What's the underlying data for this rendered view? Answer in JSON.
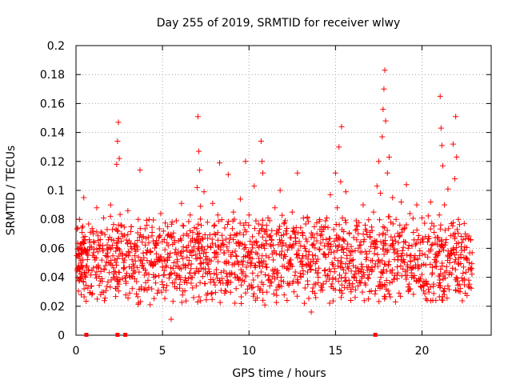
{
  "chart_data": {
    "type": "scatter",
    "title": "Day 255 of 2019, SRMTID for receiver wlwy",
    "xlabel": "GPS time / hours",
    "ylabel": "SRMTID / TECUs",
    "xlim": [
      0,
      24
    ],
    "ylim": [
      0,
      0.2
    ],
    "xticks": [
      0,
      5,
      10,
      15,
      20
    ],
    "xtick_labels": [
      "0",
      "5",
      "10",
      "15",
      "20"
    ],
    "yticks": [
      0,
      0.02,
      0.04,
      0.06,
      0.08,
      0.1,
      0.12,
      0.14,
      0.16,
      0.18,
      0.2
    ],
    "ytick_labels": [
      "0",
      "0.02",
      "0.04",
      "0.06",
      "0.08",
      "0.1",
      "0.12",
      "0.14",
      "0.16",
      "0.18",
      "0.2"
    ],
    "grid": true,
    "marker": "plus",
    "series_color": "#ff0000",
    "series": [
      {
        "name": "SRMTID",
        "points": [
          [
            0.05,
            0.055
          ],
          [
            0.1,
            0.074
          ],
          [
            0.15,
            0.048
          ],
          [
            0.2,
            0.08
          ],
          [
            0.25,
            0.063
          ],
          [
            0.3,
            0.028
          ],
          [
            0.35,
            0.071
          ],
          [
            0.4,
            0.052
          ],
          [
            0.45,
            0.095
          ],
          [
            0.5,
            0.066
          ],
          [
            0.55,
            0.04
          ],
          [
            0.6,
            0.058
          ],
          [
            0.7,
            0.045
          ],
          [
            0.8,
            0.061
          ],
          [
            0.9,
            0.034
          ],
          [
            1.0,
            0.07
          ],
          [
            1.1,
            0.052
          ],
          [
            1.2,
            0.088
          ],
          [
            1.3,
            0.047
          ],
          [
            1.4,
            0.066
          ],
          [
            1.5,
            0.039
          ],
          [
            1.6,
            0.081
          ],
          [
            1.7,
            0.055
          ],
          [
            1.8,
            0.073
          ],
          [
            1.9,
            0.05
          ],
          [
            2.0,
            0.09
          ],
          [
            2.1,
            0.062
          ],
          [
            2.2,
            0.044
          ],
          [
            2.3,
            0.058
          ],
          [
            2.35,
            0.118
          ],
          [
            2.4,
            0.134
          ],
          [
            2.45,
            0.147
          ],
          [
            2.5,
            0.122
          ],
          [
            2.6,
            0.076
          ],
          [
            2.7,
            0.053
          ],
          [
            2.8,
            0.069
          ],
          [
            2.9,
            0.041
          ],
          [
            3.0,
            0.086
          ],
          [
            3.1,
            0.057
          ],
          [
            3.2,
            0.075
          ],
          [
            3.3,
            0.049
          ],
          [
            3.4,
            0.063
          ],
          [
            3.5,
            0.037
          ],
          [
            3.6,
            0.08
          ],
          [
            3.7,
            0.114
          ],
          [
            3.8,
            0.052
          ],
          [
            3.9,
            0.068
          ],
          [
            4.0,
            0.045
          ],
          [
            4.1,
            0.076
          ],
          [
            4.2,
            0.033
          ],
          [
            4.3,
            0.058
          ],
          [
            4.4,
            0.071
          ],
          [
            4.5,
            0.04
          ],
          [
            4.6,
            0.063
          ],
          [
            4.7,
            0.029
          ],
          [
            4.8,
            0.052
          ],
          [
            4.9,
            0.084
          ],
          [
            5.0,
            0.047
          ],
          [
            5.1,
            0.066
          ],
          [
            5.2,
            0.031
          ],
          [
            5.3,
            0.075
          ],
          [
            5.4,
            0.054
          ],
          [
            5.5,
            0.011
          ],
          [
            5.6,
            0.068
          ],
          [
            5.7,
            0.043
          ],
          [
            5.8,
            0.079
          ],
          [
            5.9,
            0.057
          ],
          [
            6.0,
            0.035
          ],
          [
            6.1,
            0.091
          ],
          [
            6.2,
            0.061
          ],
          [
            6.3,
            0.048
          ],
          [
            6.4,
            0.07
          ],
          [
            6.5,
            0.039
          ],
          [
            6.6,
            0.083
          ],
          [
            6.7,
            0.055
          ],
          [
            6.8,
            0.026
          ],
          [
            6.9,
            0.064
          ],
          [
            7.0,
            0.102
          ],
          [
            7.05,
            0.151
          ],
          [
            7.1,
            0.127
          ],
          [
            7.15,
            0.114
          ],
          [
            7.2,
            0.089
          ],
          [
            7.3,
            0.067
          ],
          [
            7.4,
            0.099
          ],
          [
            7.5,
            0.052
          ],
          [
            7.6,
            0.078
          ],
          [
            7.7,
            0.044
          ],
          [
            7.8,
            0.061
          ],
          [
            7.9,
            0.091
          ],
          [
            8.0,
            0.07
          ],
          [
            8.1,
            0.054
          ],
          [
            8.2,
            0.083
          ],
          [
            8.3,
            0.119
          ],
          [
            8.4,
            0.062
          ],
          [
            8.5,
            0.036
          ],
          [
            8.6,
            0.074
          ],
          [
            8.7,
            0.051
          ],
          [
            8.8,
            0.111
          ],
          [
            8.9,
            0.067
          ],
          [
            9.0,
            0.043
          ],
          [
            9.1,
            0.085
          ],
          [
            9.2,
            0.058
          ],
          [
            9.3,
            0.07
          ],
          [
            9.4,
            0.038
          ],
          [
            9.5,
            0.094
          ],
          [
            9.6,
            0.063
          ],
          [
            9.7,
            0.076
          ],
          [
            9.8,
            0.12
          ],
          [
            9.9,
            0.055
          ],
          [
            10.0,
            0.083
          ],
          [
            10.1,
            0.048
          ],
          [
            10.2,
            0.068
          ],
          [
            10.3,
            0.103
          ],
          [
            10.4,
            0.057
          ],
          [
            10.5,
            0.041
          ],
          [
            10.6,
            0.072
          ],
          [
            10.7,
            0.134
          ],
          [
            10.75,
            0.12
          ],
          [
            10.8,
            0.112
          ],
          [
            10.9,
            0.06
          ],
          [
            11.0,
            0.047
          ],
          [
            11.1,
            0.081
          ],
          [
            11.2,
            0.034
          ],
          [
            11.3,
            0.066
          ],
          [
            11.4,
            0.052
          ],
          [
            11.5,
            0.088
          ],
          [
            11.6,
            0.043
          ],
          [
            11.7,
            0.071
          ],
          [
            11.8,
            0.1
          ],
          [
            11.9,
            0.058
          ],
          [
            12.0,
            0.037
          ],
          [
            12.1,
            0.079
          ],
          [
            12.2,
            0.024
          ],
          [
            12.3,
            0.061
          ],
          [
            12.4,
            0.048
          ],
          [
            12.5,
            0.085
          ],
          [
            12.6,
            0.03
          ],
          [
            12.7,
            0.067
          ],
          [
            12.8,
            0.112
          ],
          [
            12.9,
            0.055
          ],
          [
            13.0,
            0.04
          ],
          [
            13.1,
            0.07
          ],
          [
            13.2,
            0.022
          ],
          [
            13.3,
            0.058
          ],
          [
            13.4,
            0.035
          ],
          [
            13.5,
            0.047
          ],
          [
            13.6,
            0.016
          ],
          [
            13.7,
            0.062
          ],
          [
            13.8,
            0.029
          ],
          [
            13.9,
            0.051
          ],
          [
            14.0,
            0.04
          ],
          [
            14.1,
            0.073
          ],
          [
            14.2,
            0.033
          ],
          [
            14.3,
            0.056
          ],
          [
            14.4,
            0.045
          ],
          [
            14.5,
            0.081
          ],
          [
            14.6,
            0.063
          ],
          [
            14.7,
            0.097
          ],
          [
            14.8,
            0.05
          ],
          [
            14.9,
            0.073
          ],
          [
            15.0,
            0.112
          ],
          [
            15.1,
            0.088
          ],
          [
            15.2,
            0.13
          ],
          [
            15.3,
            0.106
          ],
          [
            15.35,
            0.144
          ],
          [
            15.4,
            0.081
          ],
          [
            15.5,
            0.065
          ],
          [
            15.6,
            0.099
          ],
          [
            15.7,
            0.047
          ],
          [
            15.8,
            0.07
          ],
          [
            15.9,
            0.03
          ],
          [
            16.0,
            0.058
          ],
          [
            16.1,
            0.042
          ],
          [
            16.2,
            0.079
          ],
          [
            16.3,
            0.034
          ],
          [
            16.4,
            0.062
          ],
          [
            16.5,
            0.049
          ],
          [
            16.6,
            0.09
          ],
          [
            16.7,
            0.036
          ],
          [
            16.8,
            0.056
          ],
          [
            16.9,
            0.025
          ],
          [
            17.0,
            0.071
          ],
          [
            17.1,
            0.044
          ],
          [
            17.2,
            0.085
          ],
          [
            17.3,
            0.061
          ],
          [
            17.4,
            0.103
          ],
          [
            17.5,
            0.12
          ],
          [
            17.6,
            0.098
          ],
          [
            17.7,
            0.137
          ],
          [
            17.75,
            0.156
          ],
          [
            17.8,
            0.17
          ],
          [
            17.85,
            0.183
          ],
          [
            17.9,
            0.148
          ],
          [
            18.0,
            0.112
          ],
          [
            18.1,
            0.123
          ],
          [
            18.2,
            0.078
          ],
          [
            18.3,
            0.095
          ],
          [
            18.4,
            0.057
          ],
          [
            18.5,
            0.08
          ],
          [
            18.6,
            0.043
          ],
          [
            18.7,
            0.068
          ],
          [
            18.8,
            0.092
          ],
          [
            18.9,
            0.051
          ],
          [
            19.0,
            0.074
          ],
          [
            19.1,
            0.104
          ],
          [
            19.2,
            0.06
          ],
          [
            19.3,
            0.084
          ],
          [
            19.4,
            0.046
          ],
          [
            19.5,
            0.071
          ],
          [
            19.6,
            0.055
          ],
          [
            19.7,
            0.09
          ],
          [
            19.8,
            0.037
          ],
          [
            19.9,
            0.064
          ],
          [
            20.0,
            0.081
          ],
          [
            20.1,
            0.049
          ],
          [
            20.2,
            0.068
          ],
          [
            20.3,
            0.035
          ],
          [
            20.4,
            0.058
          ],
          [
            20.5,
            0.092
          ],
          [
            20.6,
            0.043
          ],
          [
            20.7,
            0.071
          ],
          [
            20.8,
            0.024
          ],
          [
            20.9,
            0.055
          ],
          [
            21.0,
            0.083
          ],
          [
            21.05,
            0.165
          ],
          [
            21.1,
            0.143
          ],
          [
            21.15,
            0.131
          ],
          [
            21.2,
            0.117
          ],
          [
            21.3,
            0.09
          ],
          [
            21.4,
            0.066
          ],
          [
            21.5,
            0.101
          ],
          [
            21.6,
            0.05
          ],
          [
            21.7,
            0.077
          ],
          [
            21.8,
            0.132
          ],
          [
            21.9,
            0.108
          ],
          [
            21.95,
            0.151
          ],
          [
            22.0,
            0.123
          ],
          [
            22.1,
            0.08
          ],
          [
            22.2,
            0.03
          ],
          [
            22.3,
            0.064
          ],
          [
            22.4,
            0.047
          ],
          [
            22.5,
            0.07
          ],
          [
            22.6,
            0.053
          ],
          [
            22.7,
            0.038
          ],
          [
            22.8,
            0.066
          ],
          [
            22.9,
            0.057
          ]
        ]
      }
    ],
    "baseline_markers_x": [
      0.6,
      2.4,
      2.85,
      17.3
    ]
  }
}
